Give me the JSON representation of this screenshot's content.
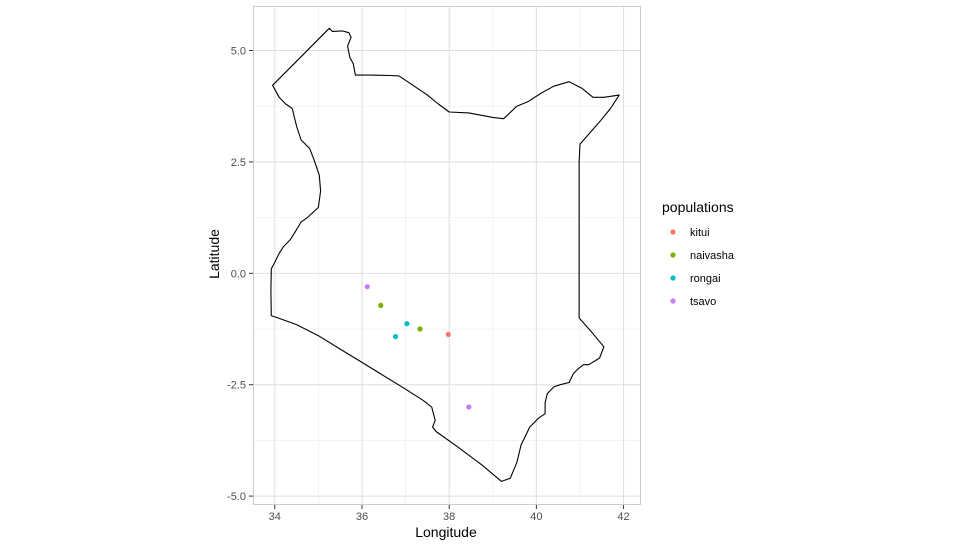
{
  "chart_data": {
    "type": "scatter",
    "title": "",
    "xlabel": "Longitude",
    "ylabel": "Latitude",
    "xlim": [
      33.5,
      42.4
    ],
    "ylim": [
      -5.2,
      6.0
    ],
    "x_ticks": [
      34,
      36,
      38,
      40,
      42
    ],
    "x_tick_labels": [
      "34",
      "36",
      "38",
      "40",
      "42"
    ],
    "y_ticks": [
      -5.0,
      -2.5,
      0.0,
      2.5,
      5.0
    ],
    "y_tick_labels": [
      "-5.0",
      "-2.5",
      "0.0",
      "2.5",
      "5.0"
    ],
    "grid": true,
    "legend": {
      "title": "populations",
      "placement": "right",
      "entries": [
        {
          "label": "kitui",
          "color": "#F8766D"
        },
        {
          "label": "naivasha",
          "color": "#7CAE00"
        },
        {
          "label": "rongai",
          "color": "#00BFC4"
        },
        {
          "label": "tsavo",
          "color": "#C77CFF"
        }
      ]
    },
    "series": [
      {
        "name": "kitui",
        "color": "#F8766D",
        "points": [
          {
            "x": 37.98,
            "y": -1.37
          }
        ]
      },
      {
        "name": "naivasha",
        "color": "#7CAE00",
        "points": [
          {
            "x": 36.43,
            "y": -0.72
          },
          {
            "x": 37.33,
            "y": -1.25
          }
        ]
      },
      {
        "name": "rongai",
        "color": "#00BFC4",
        "points": [
          {
            "x": 37.03,
            "y": -1.13
          },
          {
            "x": 36.77,
            "y": -1.42
          }
        ]
      },
      {
        "name": "tsavo",
        "color": "#C77CFF",
        "points": [
          {
            "x": 36.12,
            "y": -0.3
          },
          {
            "x": 38.45,
            "y": -3.0
          }
        ]
      }
    ],
    "outline": {
      "name": "Kenya border",
      "color": "#000000",
      "lonlat": [
        [
          33.95,
          4.22
        ],
        [
          35.25,
          5.5
        ],
        [
          35.32,
          5.43
        ],
        [
          35.55,
          5.44
        ],
        [
          35.7,
          5.4
        ],
        [
          35.75,
          5.3
        ],
        [
          35.67,
          5.1
        ],
        [
          35.72,
          4.85
        ],
        [
          35.8,
          4.7
        ],
        [
          35.85,
          4.45
        ],
        [
          36.2,
          4.45
        ],
        [
          36.65,
          4.44
        ],
        [
          36.85,
          4.43
        ],
        [
          37.2,
          4.2
        ],
        [
          37.5,
          4.0
        ],
        [
          37.75,
          3.8
        ],
        [
          38.0,
          3.62
        ],
        [
          38.45,
          3.6
        ],
        [
          39.0,
          3.5
        ],
        [
          39.25,
          3.47
        ],
        [
          39.55,
          3.75
        ],
        [
          39.8,
          3.85
        ],
        [
          40.12,
          4.05
        ],
        [
          40.4,
          4.2
        ],
        [
          40.75,
          4.3
        ],
        [
          41.05,
          4.15
        ],
        [
          41.3,
          3.95
        ],
        [
          41.55,
          3.95
        ],
        [
          41.9,
          4.0
        ],
        [
          41.7,
          3.7
        ],
        [
          41.45,
          3.4
        ],
        [
          41.0,
          2.9
        ],
        [
          40.98,
          2.5
        ],
        [
          40.98,
          1.0
        ],
        [
          40.98,
          -1.0
        ],
        [
          41.25,
          -1.3
        ],
        [
          41.55,
          -1.65
        ],
        [
          41.45,
          -1.9
        ],
        [
          41.2,
          -2.05
        ],
        [
          41.08,
          -2.05
        ],
        [
          40.95,
          -2.15
        ],
        [
          40.85,
          -2.25
        ],
        [
          40.75,
          -2.45
        ],
        [
          40.55,
          -2.5
        ],
        [
          40.4,
          -2.55
        ],
        [
          40.25,
          -2.7
        ],
        [
          40.2,
          -2.9
        ],
        [
          40.2,
          -3.15
        ],
        [
          40.05,
          -3.25
        ],
        [
          39.85,
          -3.45
        ],
        [
          39.65,
          -3.85
        ],
        [
          39.55,
          -4.25
        ],
        [
          39.4,
          -4.6
        ],
        [
          39.2,
          -4.67
        ],
        [
          38.75,
          -4.3
        ],
        [
          38.2,
          -3.9
        ],
        [
          37.7,
          -3.55
        ],
        [
          37.62,
          -3.45
        ],
        [
          37.68,
          -3.3
        ],
        [
          37.6,
          -3.0
        ],
        [
          37.4,
          -2.85
        ],
        [
          37.0,
          -2.6
        ],
        [
          36.5,
          -2.3
        ],
        [
          36.0,
          -2.0
        ],
        [
          35.5,
          -1.7
        ],
        [
          35.0,
          -1.4
        ],
        [
          34.5,
          -1.15
        ],
        [
          34.07,
          -1.0
        ],
        [
          33.92,
          -0.95
        ],
        [
          33.91,
          -0.4
        ],
        [
          33.92,
          0.1
        ],
        [
          34.0,
          0.25
        ],
        [
          34.1,
          0.45
        ],
        [
          34.2,
          0.6
        ],
        [
          34.35,
          0.75
        ],
        [
          34.45,
          0.9
        ],
        [
          34.6,
          1.15
        ],
        [
          34.75,
          1.25
        ],
        [
          34.8,
          1.3
        ],
        [
          35.0,
          1.48
        ],
        [
          35.05,
          1.85
        ],
        [
          35.02,
          2.2
        ],
        [
          34.9,
          2.55
        ],
        [
          34.8,
          2.8
        ],
        [
          34.6,
          3.0
        ],
        [
          34.5,
          3.3
        ],
        [
          34.4,
          3.7
        ],
        [
          34.25,
          3.8
        ],
        [
          34.1,
          3.95
        ],
        [
          33.95,
          4.22
        ]
      ]
    }
  }
}
